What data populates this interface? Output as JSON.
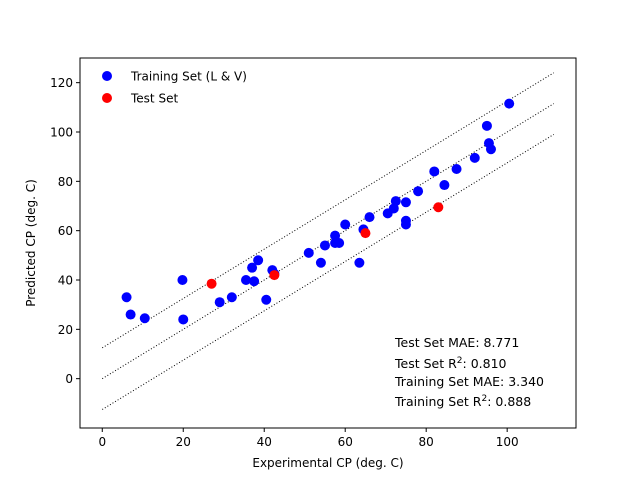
{
  "chart_data": {
    "type": "scatter",
    "title": "",
    "xlabel": "Experimental CP (deg. C)",
    "ylabel": "Predicted CP (deg. C)",
    "xlim": [
      -5.5,
      117
    ],
    "ylim": [
      -20,
      130
    ],
    "xticks": [
      0,
      20,
      40,
      60,
      80,
      100
    ],
    "yticks": [
      0,
      20,
      40,
      60,
      80,
      100,
      120
    ],
    "grid": false,
    "legend_position": "top-left",
    "series": [
      {
        "name": "Training Set (L & V)",
        "color": "#0000ff",
        "points": [
          [
            6,
            33
          ],
          [
            7,
            26
          ],
          [
            10.5,
            24.5
          ],
          [
            19.8,
            40
          ],
          [
            20,
            24
          ],
          [
            29,
            31
          ],
          [
            32,
            33
          ],
          [
            35.5,
            40
          ],
          [
            37,
            45
          ],
          [
            37.5,
            39.5
          ],
          [
            38.5,
            48
          ],
          [
            40.5,
            32
          ],
          [
            42,
            44
          ],
          [
            42.5,
            42.5
          ],
          [
            51,
            51
          ],
          [
            54,
            47
          ],
          [
            55,
            54
          ],
          [
            57.5,
            55
          ],
          [
            57.5,
            58
          ],
          [
            58.5,
            55
          ],
          [
            60,
            62.5
          ],
          [
            63.5,
            47
          ],
          [
            64.5,
            60.5
          ],
          [
            66,
            65.5
          ],
          [
            70.5,
            67
          ],
          [
            72,
            69
          ],
          [
            72.5,
            72
          ],
          [
            75,
            71.5
          ],
          [
            75,
            64
          ],
          [
            75,
            62.5
          ],
          [
            78,
            76
          ],
          [
            82,
            84
          ],
          [
            84.5,
            78.5
          ],
          [
            87.5,
            85
          ],
          [
            92,
            89.5
          ],
          [
            95,
            102.5
          ],
          [
            95.5,
            95.5
          ],
          [
            96,
            93
          ],
          [
            100.5,
            111.5
          ]
        ]
      },
      {
        "name": "Test Set",
        "color": "#ff0000",
        "points": [
          [
            27,
            38.5
          ],
          [
            42.5,
            42
          ],
          [
            65,
            59
          ],
          [
            83,
            69.5
          ]
        ]
      }
    ],
    "reference_lines": {
      "x_start": 0,
      "x_end": 111.5,
      "offsets": [
        12.5,
        0,
        -12.5
      ],
      "style": "dotted",
      "color": "#000000"
    },
    "annotations": {
      "test_mae": "Test Set MAE: 8.771",
      "test_r2_prefix": "Test Set R",
      "test_r2_value": ": 0.810",
      "train_mae": "Training Set MAE: 3.340",
      "train_r2_prefix": "Training Set R",
      "train_r2_value": ": 0.888",
      "superscript": "2"
    }
  }
}
